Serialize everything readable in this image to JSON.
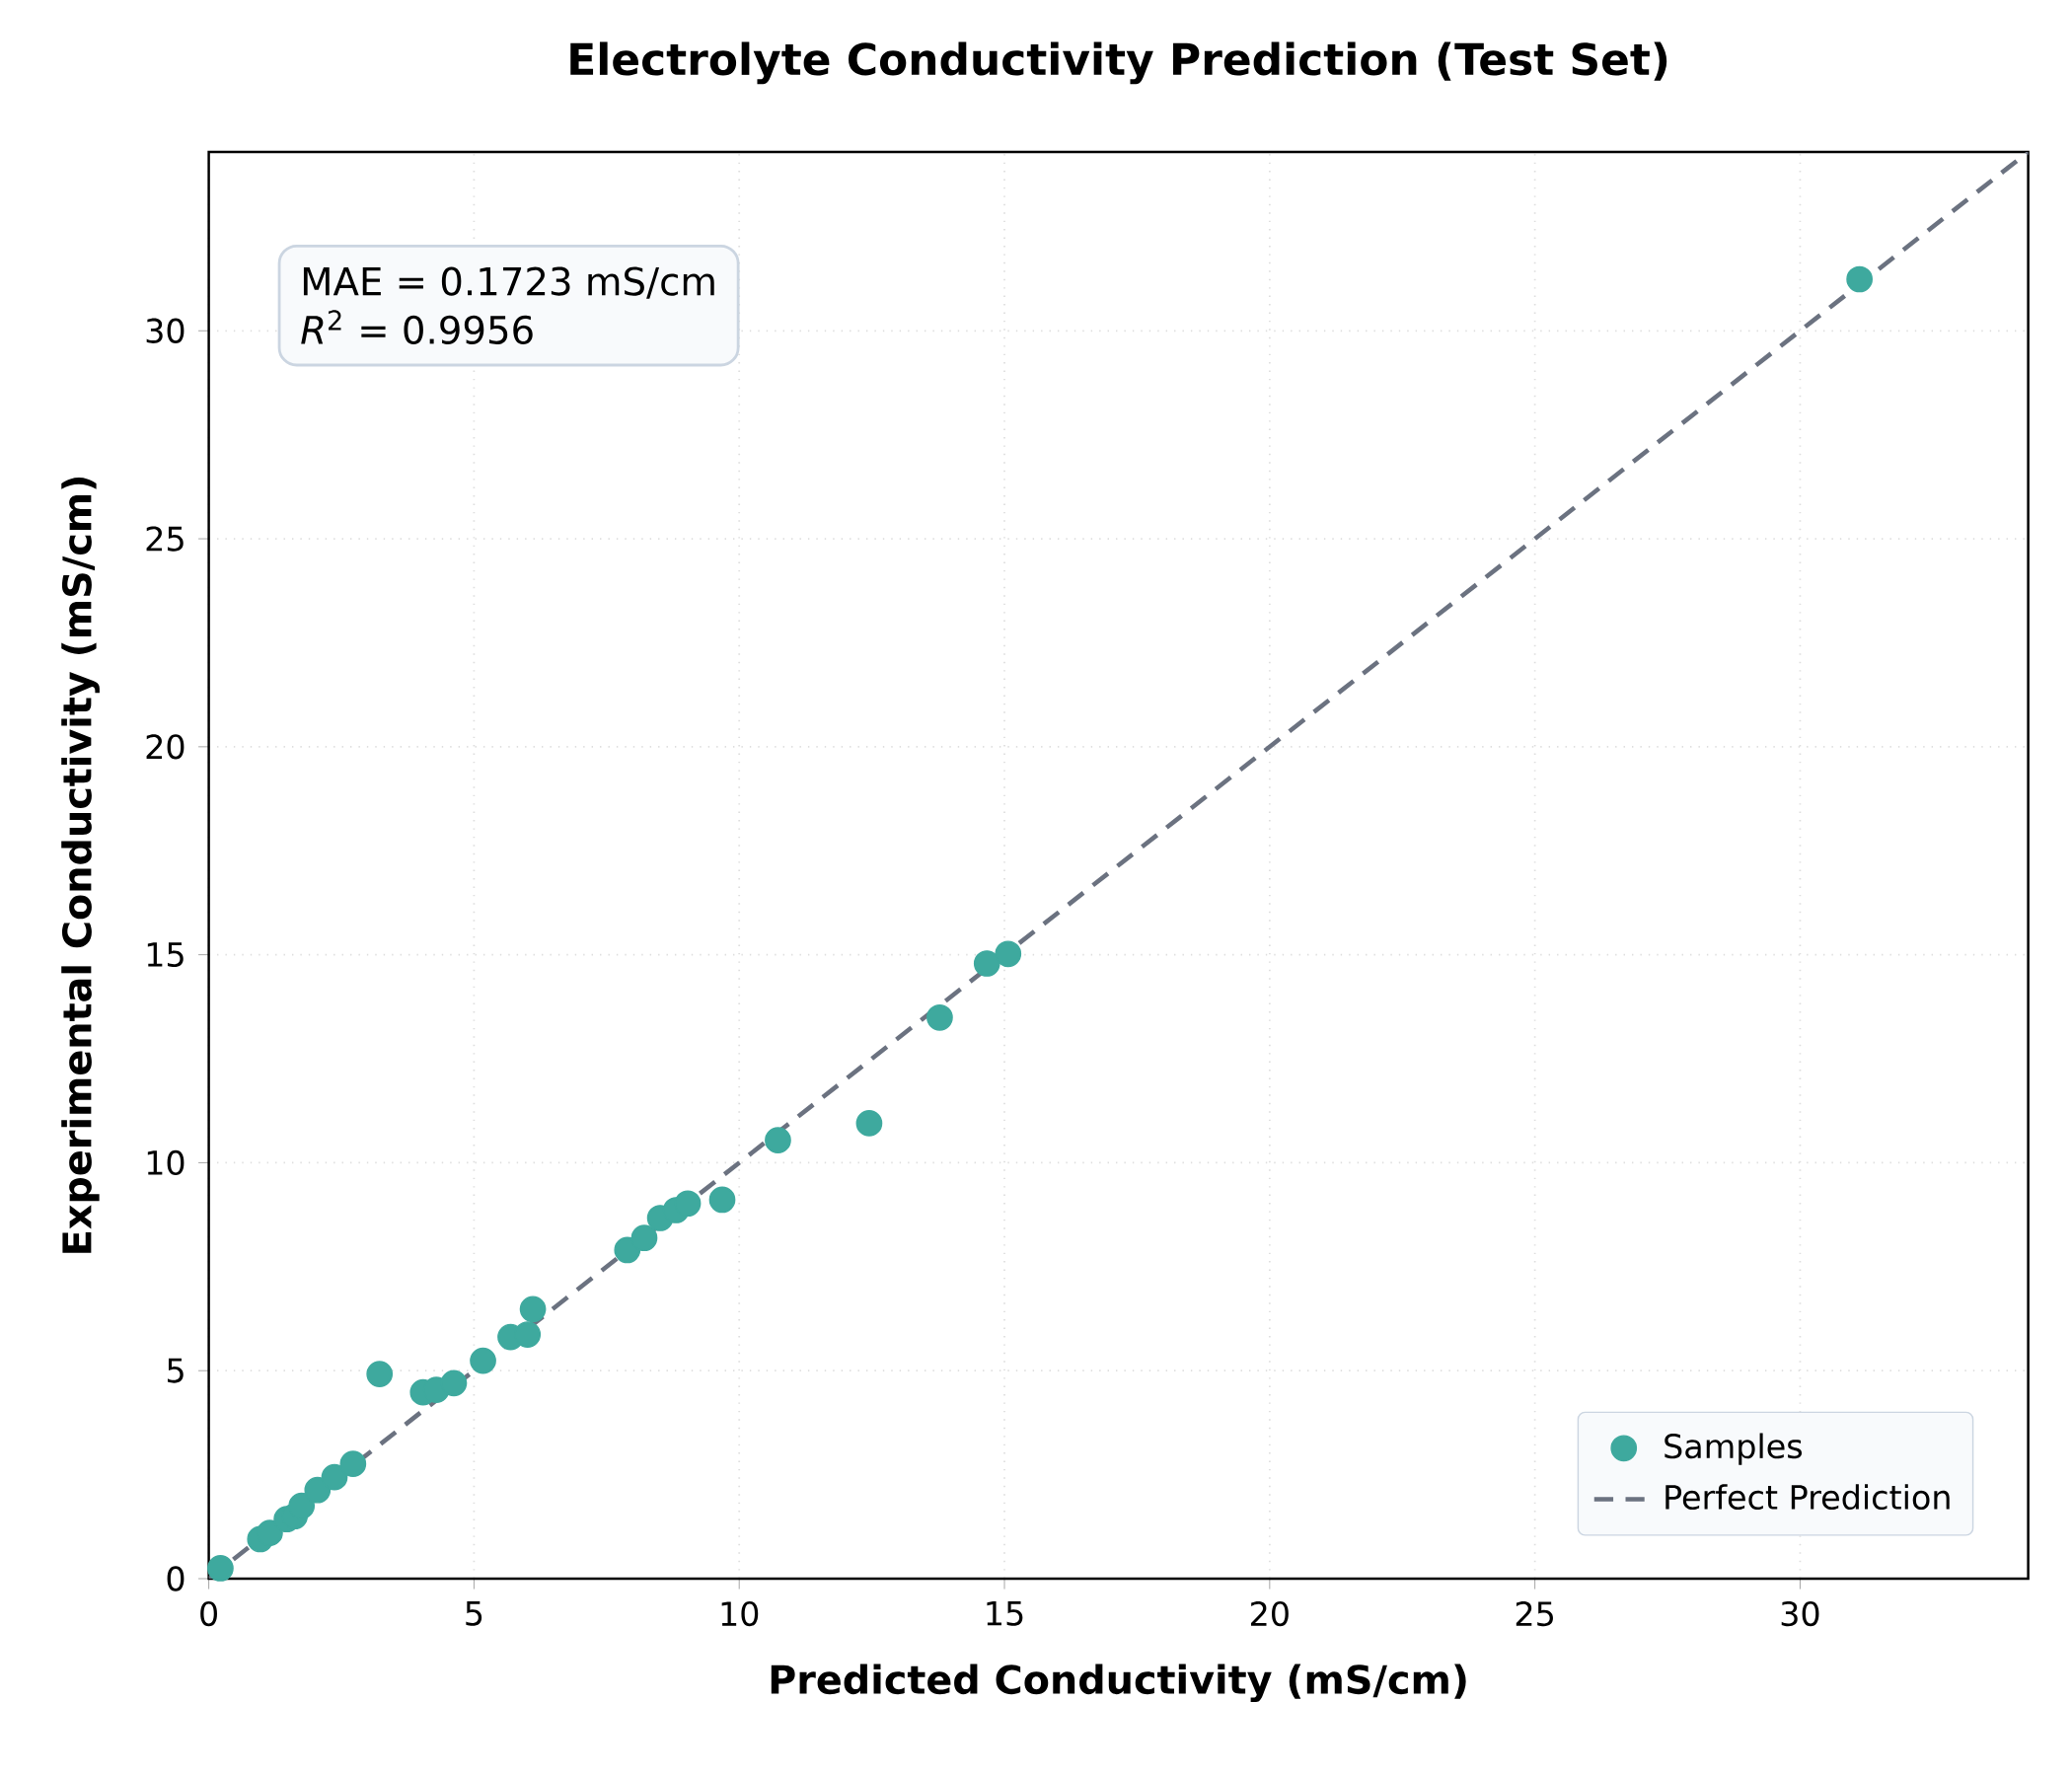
{
  "chart_data": {
    "type": "scatter",
    "title": "Electrolyte Conductivity Prediction (Test Set)",
    "xlabel": "Predicted Conductivity (mS/cm)",
    "ylabel": "Experimental Conductivity (mS/cm)",
    "xlim": [
      0,
      34.3
    ],
    "ylim": [
      0,
      34.3
    ],
    "xticks": [
      0,
      5,
      10,
      15,
      20,
      25,
      30
    ],
    "yticks": [
      0,
      5,
      10,
      15,
      20,
      25,
      30
    ],
    "grid": true,
    "legend": "bottom right",
    "marker": "circle",
    "annotations": [
      "MAE = 0.1723 mS/cm",
      "*R*$^{2}$ = 0.9956"
    ],
    "series": [
      {
        "name": "Samples",
        "color": "#3ea99e",
        "x": [
          0.22,
          0.97,
          1.15,
          1.47,
          1.62,
          1.65,
          1.75,
          2.05,
          2.37,
          2.72,
          3.22,
          4.04,
          4.29,
          4.62,
          5.17,
          5.69,
          6.01,
          6.11,
          7.89,
          8.21,
          8.51,
          8.81,
          9.03,
          9.68,
          10.73,
          12.45,
          13.78,
          14.67,
          15.07,
          31.12
        ],
        "values": [
          0.25,
          0.95,
          1.1,
          1.43,
          1.5,
          null,
          1.75,
          2.13,
          2.44,
          2.76,
          4.92,
          4.48,
          4.54,
          4.7,
          5.24,
          5.81,
          5.87,
          6.48,
          7.9,
          8.19,
          8.67,
          8.86,
          9.02,
          9.11,
          10.54,
          10.95,
          13.49,
          14.79,
          15.02,
          31.24
        ]
      },
      {
        "name": "Perfect Prediction",
        "type": "line",
        "line_style": "dashed",
        "marker": "none",
        "color": "#6b7280",
        "x": [
          0,
          34.3
        ],
        "values": [
          0,
          34.3
        ]
      }
    ]
  }
}
